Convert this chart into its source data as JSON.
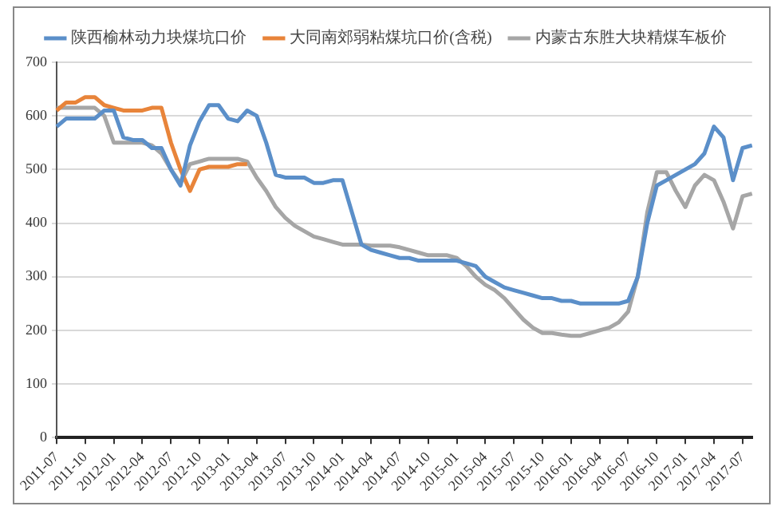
{
  "chart_data": {
    "type": "line",
    "categories": [
      "2011-07",
      null,
      null,
      "2011-10",
      null,
      null,
      "2012-01",
      null,
      null,
      "2012-04",
      null,
      null,
      "2012-07",
      null,
      null,
      "2012-10",
      null,
      null,
      "2013-01",
      null,
      null,
      "2013-04",
      null,
      null,
      "2013-07",
      null,
      null,
      "2013-10",
      null,
      null,
      "2014-01",
      null,
      null,
      "2014-04",
      null,
      null,
      "2014-07",
      null,
      null,
      "2014-10",
      null,
      null,
      "2015-01",
      null,
      null,
      "2015-04",
      null,
      null,
      "2015-07",
      null,
      null,
      "2015-10",
      null,
      null,
      "2016-01",
      null,
      null,
      "2016-04",
      null,
      null,
      "2016-07",
      null,
      null,
      "2016-10",
      null,
      null,
      "2017-01",
      null,
      null,
      "2017-04",
      null,
      null,
      "2017-07",
      null
    ],
    "series": [
      {
        "name": "陕西榆林动力块煤坑口价",
        "color": "#5b8fc9",
        "values": [
          580,
          595,
          595,
          595,
          595,
          610,
          610,
          560,
          555,
          555,
          540,
          540,
          500,
          470,
          545,
          590,
          620,
          620,
          595,
          590,
          610,
          600,
          550,
          490,
          485,
          485,
          485,
          475,
          475,
          480,
          480,
          420,
          360,
          350,
          345,
          340,
          335,
          335,
          330,
          330,
          330,
          330,
          330,
          325,
          320,
          300,
          290,
          280,
          275,
          270,
          265,
          260,
          260,
          255,
          255,
          250,
          250,
          250,
          250,
          250,
          255,
          300,
          400,
          470,
          480,
          490,
          500,
          510,
          530,
          580,
          560,
          480,
          540,
          545
        ]
      },
      {
        "name": "大同南郊弱粘煤坑口价(含税)",
        "color": "#e8843a",
        "values": [
          610,
          625,
          625,
          635,
          635,
          620,
          615,
          610,
          610,
          610,
          615,
          615,
          550,
          500,
          460,
          500,
          505,
          505,
          505,
          510,
          510,
          null,
          null,
          null,
          null,
          null,
          null,
          null,
          null,
          null,
          null,
          null,
          null,
          null,
          null,
          null,
          null,
          null,
          null,
          null,
          null,
          null,
          null,
          null,
          null,
          null,
          null,
          null,
          null,
          null,
          null,
          null,
          null,
          null,
          null,
          null,
          null,
          null,
          null,
          null,
          null,
          null,
          null,
          null,
          null,
          null,
          null,
          null,
          null,
          null,
          null,
          null,
          null,
          null
        ]
      },
      {
        "name": "内蒙古东胜大块精煤车板价",
        "color": "#a6a6a6",
        "values": [
          615,
          615,
          615,
          615,
          615,
          600,
          550,
          550,
          550,
          550,
          545,
          530,
          500,
          475,
          510,
          515,
          520,
          520,
          520,
          520,
          515,
          485,
          460,
          430,
          410,
          395,
          385,
          375,
          370,
          365,
          360,
          360,
          360,
          358,
          358,
          358,
          355,
          350,
          345,
          340,
          340,
          340,
          335,
          320,
          300,
          285,
          275,
          260,
          240,
          220,
          205,
          195,
          195,
          192,
          190,
          190,
          195,
          200,
          205,
          215,
          235,
          300,
          420,
          495,
          495,
          460,
          430,
          470,
          490,
          480,
          440,
          390,
          450,
          455
        ]
      }
    ],
    "ylim": [
      0,
      700
    ],
    "yticks": [
      0,
      100,
      200,
      300,
      400,
      500,
      600,
      700
    ],
    "grid": "y",
    "legend": "top",
    "marker": "none",
    "line_style": "solid"
  }
}
